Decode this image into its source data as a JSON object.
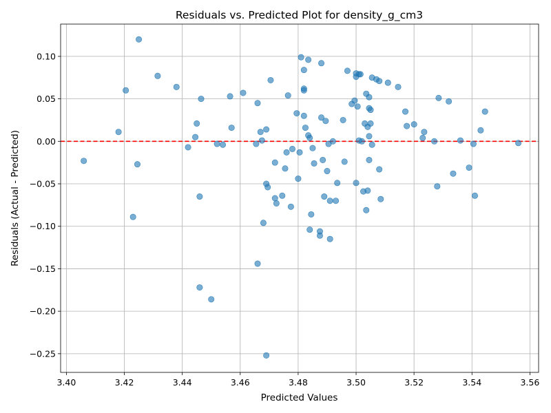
{
  "chart_data": {
    "type": "scatter",
    "title": "Residuals vs. Predicted Plot for density_g_cm3",
    "xlabel": "Predicted Values",
    "ylabel": "Residuals (Actual - Predicted)",
    "xlim": [
      3.398,
      3.563
    ],
    "ylim": [
      -0.272,
      0.138
    ],
    "x_ticks": [
      3.4,
      3.42,
      3.44,
      3.46,
      3.48,
      3.5,
      3.52,
      3.54,
      3.56
    ],
    "x_tick_labels": [
      "3.40",
      "3.42",
      "3.44",
      "3.46",
      "3.48",
      "3.50",
      "3.52",
      "3.54",
      "3.56"
    ],
    "y_ticks": [
      -0.25,
      -0.2,
      -0.15,
      -0.1,
      -0.05,
      0.0,
      0.05,
      0.1
    ],
    "y_tick_labels": [
      "−0.25",
      "−0.20",
      "−0.15",
      "−0.10",
      "−0.05",
      "0.00",
      "0.05",
      "0.10"
    ],
    "grid": true,
    "reference_line": {
      "y": 0,
      "style": "dashed",
      "color": "#ff0000"
    },
    "marker_color": "#1f77b4",
    "marker_alpha": 0.6,
    "points": [
      [
        3.406,
        -0.023
      ],
      [
        3.418,
        0.011
      ],
      [
        3.4205,
        0.06
      ],
      [
        3.423,
        -0.089
      ],
      [
        3.4245,
        -0.027
      ],
      [
        3.425,
        0.12
      ],
      [
        3.4315,
        0.077
      ],
      [
        3.438,
        0.064
      ],
      [
        3.442,
        -0.007
      ],
      [
        3.4445,
        0.005
      ],
      [
        3.445,
        0.021
      ],
      [
        3.446,
        -0.065
      ],
      [
        3.446,
        -0.172
      ],
      [
        3.45,
        -0.186
      ],
      [
        3.452,
        -0.003
      ],
      [
        3.454,
        -0.004
      ],
      [
        3.4565,
        0.053
      ],
      [
        3.457,
        0.016
      ],
      [
        3.461,
        0.057
      ],
      [
        3.4655,
        -0.003
      ],
      [
        3.466,
        0.045
      ],
      [
        3.4465,
        0.05
      ],
      [
        3.467,
        0.011
      ],
      [
        3.4675,
        0.001
      ],
      [
        3.468,
        -0.096
      ],
      [
        3.469,
        0.014
      ],
      [
        3.469,
        -0.05
      ],
      [
        3.4695,
        -0.054
      ],
      [
        3.4705,
        0.072
      ],
      [
        3.472,
        -0.025
      ],
      [
        3.472,
        -0.067
      ],
      [
        3.4725,
        -0.073
      ],
      [
        3.4745,
        -0.064
      ],
      [
        3.4755,
        -0.032
      ],
      [
        3.476,
        -0.013
      ],
      [
        3.4765,
        0.054
      ],
      [
        3.4775,
        -0.077
      ],
      [
        3.478,
        -0.009
      ],
      [
        3.4795,
        0.033
      ],
      [
        3.48,
        -0.044
      ],
      [
        3.4805,
        -0.013
      ],
      [
        3.481,
        0.099
      ],
      [
        3.482,
        0.062
      ],
      [
        3.482,
        0.06
      ],
      [
        3.482,
        0.084
      ],
      [
        3.482,
        0.03
      ],
      [
        3.4825,
        0.016
      ],
      [
        3.4835,
        0.096
      ],
      [
        3.4835,
        0.007
      ],
      [
        3.484,
        0.004
      ],
      [
        3.484,
        -0.104
      ],
      [
        3.4845,
        -0.086
      ],
      [
        3.485,
        -0.008
      ],
      [
        3.4855,
        -0.026
      ],
      [
        3.4875,
        -0.111
      ],
      [
        3.4875,
        -0.106
      ],
      [
        3.488,
        0.092
      ],
      [
        3.488,
        0.028
      ],
      [
        3.4885,
        -0.022
      ],
      [
        3.489,
        -0.065
      ],
      [
        3.4895,
        0.024
      ],
      [
        3.49,
        -0.035
      ],
      [
        3.4905,
        -0.003
      ],
      [
        3.491,
        -0.07
      ],
      [
        3.491,
        -0.115
      ],
      [
        3.492,
        0.0
      ],
      [
        3.493,
        -0.07
      ],
      [
        3.4935,
        -0.049
      ],
      [
        3.4955,
        0.025
      ],
      [
        3.496,
        -0.024
      ],
      [
        3.497,
        0.083
      ],
      [
        3.4985,
        0.044
      ],
      [
        3.4995,
        0.048
      ],
      [
        3.5,
        0.076
      ],
      [
        3.5,
        0.08
      ],
      [
        3.5,
        -0.049
      ],
      [
        3.5005,
        0.041
      ],
      [
        3.501,
        0.079
      ],
      [
        3.501,
        0.001
      ],
      [
        3.5015,
        0.079
      ],
      [
        3.502,
        0.0
      ],
      [
        3.5025,
        -0.059
      ],
      [
        3.503,
        0.021
      ],
      [
        3.5035,
        0.056
      ],
      [
        3.5035,
        -0.081
      ],
      [
        3.504,
        0.017
      ],
      [
        3.504,
        -0.058
      ],
      [
        3.5045,
        0.052
      ],
      [
        3.5045,
        0.039
      ],
      [
        3.5045,
        0.006
      ],
      [
        3.5045,
        -0.022
      ],
      [
        3.505,
        0.037
      ],
      [
        3.505,
        0.021
      ],
      [
        3.5055,
        0.075
      ],
      [
        3.5055,
        -0.004
      ],
      [
        3.507,
        0.073
      ],
      [
        3.508,
        0.071
      ],
      [
        3.508,
        -0.033
      ],
      [
        3.5085,
        -0.068
      ],
      [
        3.511,
        0.069
      ],
      [
        3.5145,
        0.064
      ],
      [
        3.517,
        0.035
      ],
      [
        3.5175,
        0.018
      ],
      [
        3.52,
        0.02
      ],
      [
        3.523,
        0.004
      ],
      [
        3.5235,
        0.011
      ],
      [
        3.527,
        0.0
      ],
      [
        3.528,
        -0.053
      ],
      [
        3.5285,
        0.051
      ],
      [
        3.532,
        0.047
      ],
      [
        3.5335,
        -0.038
      ],
      [
        3.536,
        0.001
      ],
      [
        3.539,
        -0.031
      ],
      [
        3.5405,
        -0.003
      ],
      [
        3.541,
        -0.064
      ],
      [
        3.543,
        0.013
      ],
      [
        3.5445,
        0.035
      ],
      [
        3.556,
        -0.002
      ],
      [
        3.469,
        -0.252
      ],
      [
        3.466,
        -0.144
      ]
    ]
  }
}
